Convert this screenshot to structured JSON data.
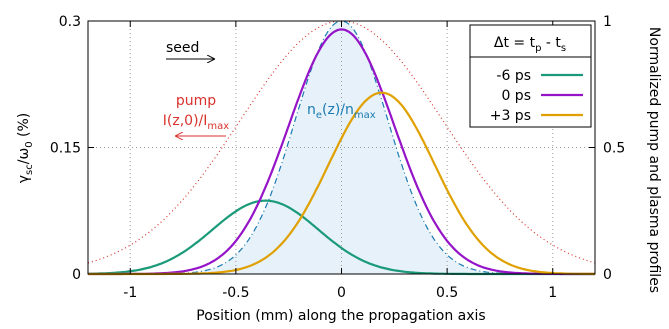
{
  "chart_data": {
    "type": "line",
    "xlabel": "Position (mm) along the propagation axis",
    "ylabel_left": "γsc/ω0 (%)",
    "ylabel_right": "Normalized pump and plasma profiles",
    "xlim": [
      -1.2,
      1.2
    ],
    "ylim_left": [
      0,
      0.3
    ],
    "ylim_right": [
      0,
      1
    ],
    "x_ticks": [
      "-1",
      "-0.5",
      "0",
      "0.5",
      "1"
    ],
    "y_ticks_left": [
      "0",
      "0.15",
      "0.3"
    ],
    "y_ticks_right": [
      "0",
      "0.5",
      "1"
    ],
    "grid": true,
    "legend_title": "Δt = tp - ts",
    "legend_position": "top-right",
    "series": [
      {
        "name": "-6 ps",
        "color": "#1a9a79",
        "peak_x": -0.36,
        "peak_y": 0.087,
        "width_mm": 0.25
      },
      {
        "name": "0 ps",
        "color": "#9514c8",
        "peak_x": 0.0,
        "peak_y": 0.29,
        "width_mm": 0.25
      },
      {
        "name": "+3 ps",
        "color": "#e0a000",
        "peak_x": 0.19,
        "peak_y": 0.215,
        "width_mm": 0.25
      }
    ],
    "pump_profile": {
      "label": "pump I(z,0)/Imax",
      "color": "#d9322b",
      "peak_x": 0.0,
      "peak_normalized": 1.0,
      "width_mm": 0.48
    },
    "plasma_profile": {
      "label": "ne(z)/nmax",
      "color": "#1a7bb0",
      "fill": "#e6f1fa",
      "peak_x": 0.0,
      "peak_normalized": 1.0,
      "width_mm": 0.22
    },
    "annotations": {
      "seed": {
        "text": "seed",
        "direction": "right",
        "color": "#000000"
      },
      "pump": {
        "line1": "pump",
        "line2": "I(z,0)/Imax",
        "direction": "left",
        "color": "#d9322b"
      },
      "plasma": {
        "text": "ne(z)/nmax",
        "color": "#1a7bb0"
      }
    }
  }
}
